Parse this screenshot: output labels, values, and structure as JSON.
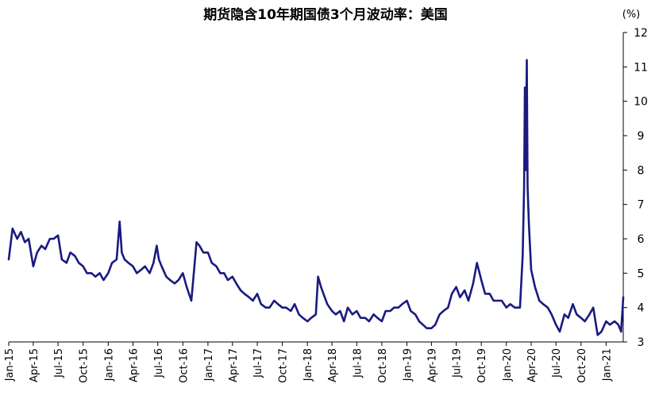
{
  "chart_data": {
    "type": "line",
    "title": "期货隐含10年期国债3个月波动率：美国",
    "unit_label": "(%)",
    "xlabel": "",
    "ylabel": "",
    "ylim": [
      3,
      12
    ],
    "y_ticks": [
      3,
      4,
      5,
      6,
      7,
      8,
      9,
      10,
      11,
      12
    ],
    "y_axis_position": "right",
    "grid": false,
    "legend": "none",
    "line_color": "#1a1a80",
    "x_tick_labels": [
      "Jan-15",
      "Apr-15",
      "Jul-15",
      "Oct-15",
      "Jan-16",
      "Apr-16",
      "Jul-16",
      "Oct-16",
      "Jan-17",
      "Apr-17",
      "Jul-17",
      "Oct-17",
      "Jan-18",
      "Apr-18",
      "Jul-18",
      "Oct-18",
      "Jan-19",
      "Apr-19",
      "Jul-19",
      "Oct-19",
      "Jan-20",
      "Apr-20",
      "Jul-20",
      "Oct-20",
      "Jan-21"
    ],
    "x": [
      "2015-01-01",
      "2015-01-15",
      "2015-02-01",
      "2015-02-15",
      "2015-03-01",
      "2015-03-15",
      "2015-04-01",
      "2015-04-15",
      "2015-05-01",
      "2015-05-15",
      "2015-06-01",
      "2015-06-15",
      "2015-07-01",
      "2015-07-15",
      "2015-08-01",
      "2015-08-15",
      "2015-09-01",
      "2015-09-15",
      "2015-10-01",
      "2015-10-15",
      "2015-11-01",
      "2015-11-15",
      "2015-12-01",
      "2015-12-15",
      "2016-01-01",
      "2016-01-15",
      "2016-02-01",
      "2016-02-12",
      "2016-02-20",
      "2016-03-01",
      "2016-03-15",
      "2016-04-01",
      "2016-04-15",
      "2016-05-01",
      "2016-05-15",
      "2016-06-01",
      "2016-06-15",
      "2016-06-27",
      "2016-07-05",
      "2016-07-15",
      "2016-08-01",
      "2016-08-15",
      "2016-09-01",
      "2016-09-15",
      "2016-10-01",
      "2016-10-15",
      "2016-11-01",
      "2016-11-10",
      "2016-11-20",
      "2016-12-01",
      "2016-12-15",
      "2017-01-01",
      "2017-01-15",
      "2017-02-01",
      "2017-02-15",
      "2017-03-01",
      "2017-03-15",
      "2017-04-01",
      "2017-04-15",
      "2017-05-01",
      "2017-05-15",
      "2017-06-01",
      "2017-06-15",
      "2017-07-01",
      "2017-07-15",
      "2017-08-01",
      "2017-08-15",
      "2017-09-01",
      "2017-09-15",
      "2017-10-01",
      "2017-10-15",
      "2017-11-01",
      "2017-11-15",
      "2017-12-01",
      "2017-12-15",
      "2018-01-01",
      "2018-01-15",
      "2018-02-01",
      "2018-02-09",
      "2018-02-20",
      "2018-03-01",
      "2018-03-15",
      "2018-04-01",
      "2018-04-15",
      "2018-05-01",
      "2018-05-15",
      "2018-05-29",
      "2018-06-15",
      "2018-07-01",
      "2018-07-15",
      "2018-08-01",
      "2018-08-15",
      "2018-09-01",
      "2018-09-15",
      "2018-10-01",
      "2018-10-15",
      "2018-11-01",
      "2018-11-15",
      "2018-12-01",
      "2018-12-15",
      "2019-01-01",
      "2019-01-15",
      "2019-02-01",
      "2019-02-15",
      "2019-03-01",
      "2019-03-15",
      "2019-04-01",
      "2019-04-15",
      "2019-05-01",
      "2019-05-15",
      "2019-06-01",
      "2019-06-15",
      "2019-07-01",
      "2019-07-15",
      "2019-08-01",
      "2019-08-15",
      "2019-09-01",
      "2019-09-15",
      "2019-10-01",
      "2019-10-15",
      "2019-11-01",
      "2019-11-15",
      "2019-12-01",
      "2019-12-15",
      "2020-01-01",
      "2020-01-15",
      "2020-02-01",
      "2020-02-20",
      "2020-03-01",
      "2020-03-06",
      "2020-03-09",
      "2020-03-12",
      "2020-03-16",
      "2020-03-19",
      "2020-03-24",
      "2020-04-01",
      "2020-04-15",
      "2020-05-01",
      "2020-05-15",
      "2020-06-01",
      "2020-06-15",
      "2020-07-01",
      "2020-07-15",
      "2020-08-01",
      "2020-08-15",
      "2020-09-01",
      "2020-09-15",
      "2020-10-01",
      "2020-10-15",
      "2020-11-01",
      "2020-11-15",
      "2020-12-01",
      "2020-12-15",
      "2021-01-01",
      "2021-01-15",
      "2021-02-01",
      "2021-02-15",
      "2021-02-25",
      "2021-03-05"
    ],
    "series": [
      {
        "values": [
          5.4,
          6.3,
          6.0,
          6.2,
          5.9,
          6.0,
          5.2,
          5.6,
          5.8,
          5.7,
          6.0,
          6.0,
          6.1,
          5.4,
          5.3,
          5.6,
          5.5,
          5.3,
          5.2,
          5.0,
          5.0,
          4.9,
          5.0,
          4.8,
          5.0,
          5.3,
          5.4,
          6.5,
          5.6,
          5.4,
          5.3,
          5.2,
          5.0,
          5.1,
          5.2,
          5.0,
          5.3,
          5.8,
          5.4,
          5.2,
          4.9,
          4.8,
          4.7,
          4.8,
          5.0,
          4.6,
          4.2,
          5.0,
          5.9,
          5.8,
          5.6,
          5.6,
          5.3,
          5.2,
          5.0,
          5.0,
          4.8,
          4.9,
          4.7,
          4.5,
          4.4,
          4.3,
          4.2,
          4.4,
          4.1,
          4.0,
          4.0,
          4.2,
          4.1,
          4.0,
          4.0,
          3.9,
          4.1,
          3.8,
          3.7,
          3.6,
          3.7,
          3.8,
          4.9,
          4.6,
          4.4,
          4.1,
          3.9,
          3.8,
          3.9,
          3.6,
          4.0,
          3.8,
          3.9,
          3.7,
          3.7,
          3.6,
          3.8,
          3.7,
          3.6,
          3.9,
          3.9,
          4.0,
          4.0,
          4.1,
          4.2,
          3.9,
          3.8,
          3.6,
          3.5,
          3.4,
          3.4,
          3.5,
          3.8,
          3.9,
          4.0,
          4.4,
          4.6,
          4.3,
          4.5,
          4.2,
          4.7,
          5.3,
          4.8,
          4.4,
          4.4,
          4.2,
          4.2,
          4.2,
          4.0,
          4.1,
          4.0,
          4.0,
          5.5,
          7.5,
          10.4,
          8.0,
          11.2,
          7.5,
          6.4,
          5.1,
          4.6,
          4.2,
          4.1,
          4.0,
          3.8,
          3.5,
          3.3,
          3.8,
          3.7,
          4.1,
          3.8,
          3.7,
          3.6,
          3.8,
          4.0,
          3.2,
          3.3,
          3.6,
          3.5,
          3.6,
          3.5,
          3.3,
          4.3
        ]
      }
    ]
  }
}
